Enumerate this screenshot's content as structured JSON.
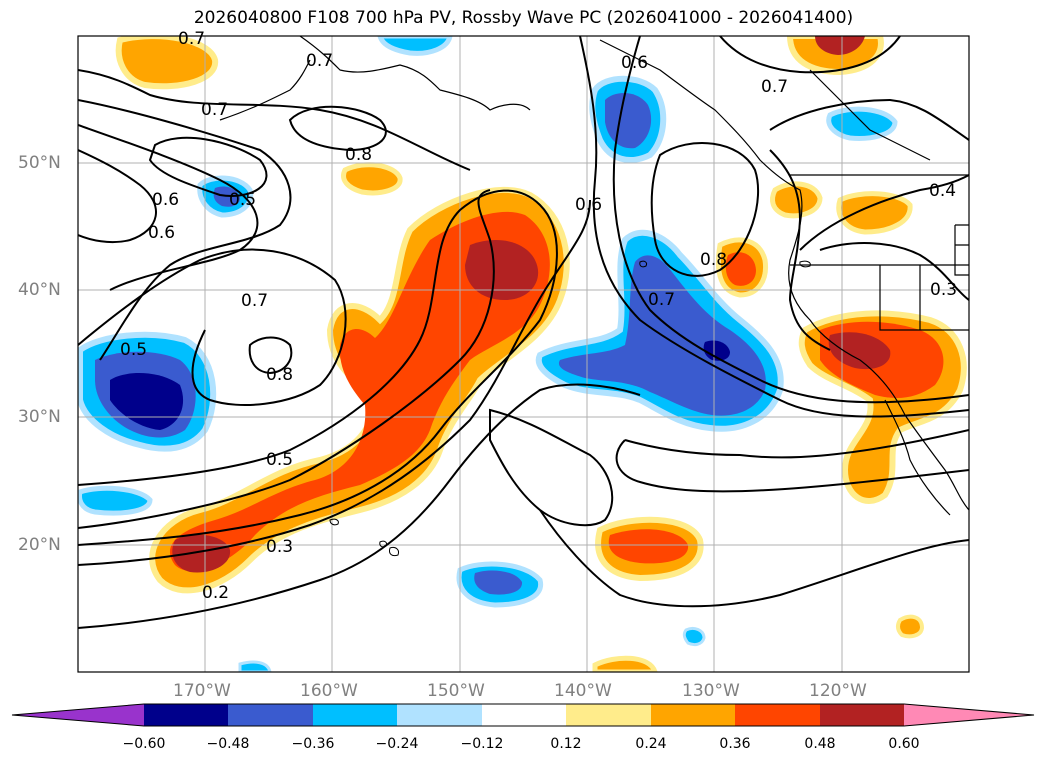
{
  "title": "2026040800 F108 700 hPa PV, Rossby Wave PC (2026041000 - 2026041400)",
  "map": {
    "lon_range": [
      -180,
      -110
    ],
    "lat_range": [
      10,
      60
    ],
    "lat_labels": [
      "50°N",
      "40°N",
      "30°N",
      "20°N"
    ],
    "lon_labels": [
      "170°W",
      "160°W",
      "150°W",
      "140°W",
      "130°W",
      "120°W"
    ],
    "contour_labels": [
      "0.7",
      "0.7",
      "0.8",
      "0.6",
      "0.5",
      "0.7",
      "0.6",
      "0.7",
      "0.8",
      "0.5",
      "0.5",
      "0.3",
      "0.2",
      "0.6",
      "0.8",
      "0.7",
      "0.7",
      "0.4",
      "0.3"
    ]
  },
  "colorbar": {
    "ticks": [
      "−0.60",
      "−0.48",
      "−0.36",
      "−0.24",
      "−0.12",
      "0.12",
      "0.24",
      "0.36",
      "0.48",
      "0.60"
    ],
    "colors": [
      "#9933cc",
      "#00008b",
      "#3a5bcf",
      "#00bfff",
      "#b0e2ff",
      "#ffffff",
      "#ffec8b",
      "#ffa500",
      "#ff4500",
      "#b22222",
      "#ff89b5"
    ]
  }
}
